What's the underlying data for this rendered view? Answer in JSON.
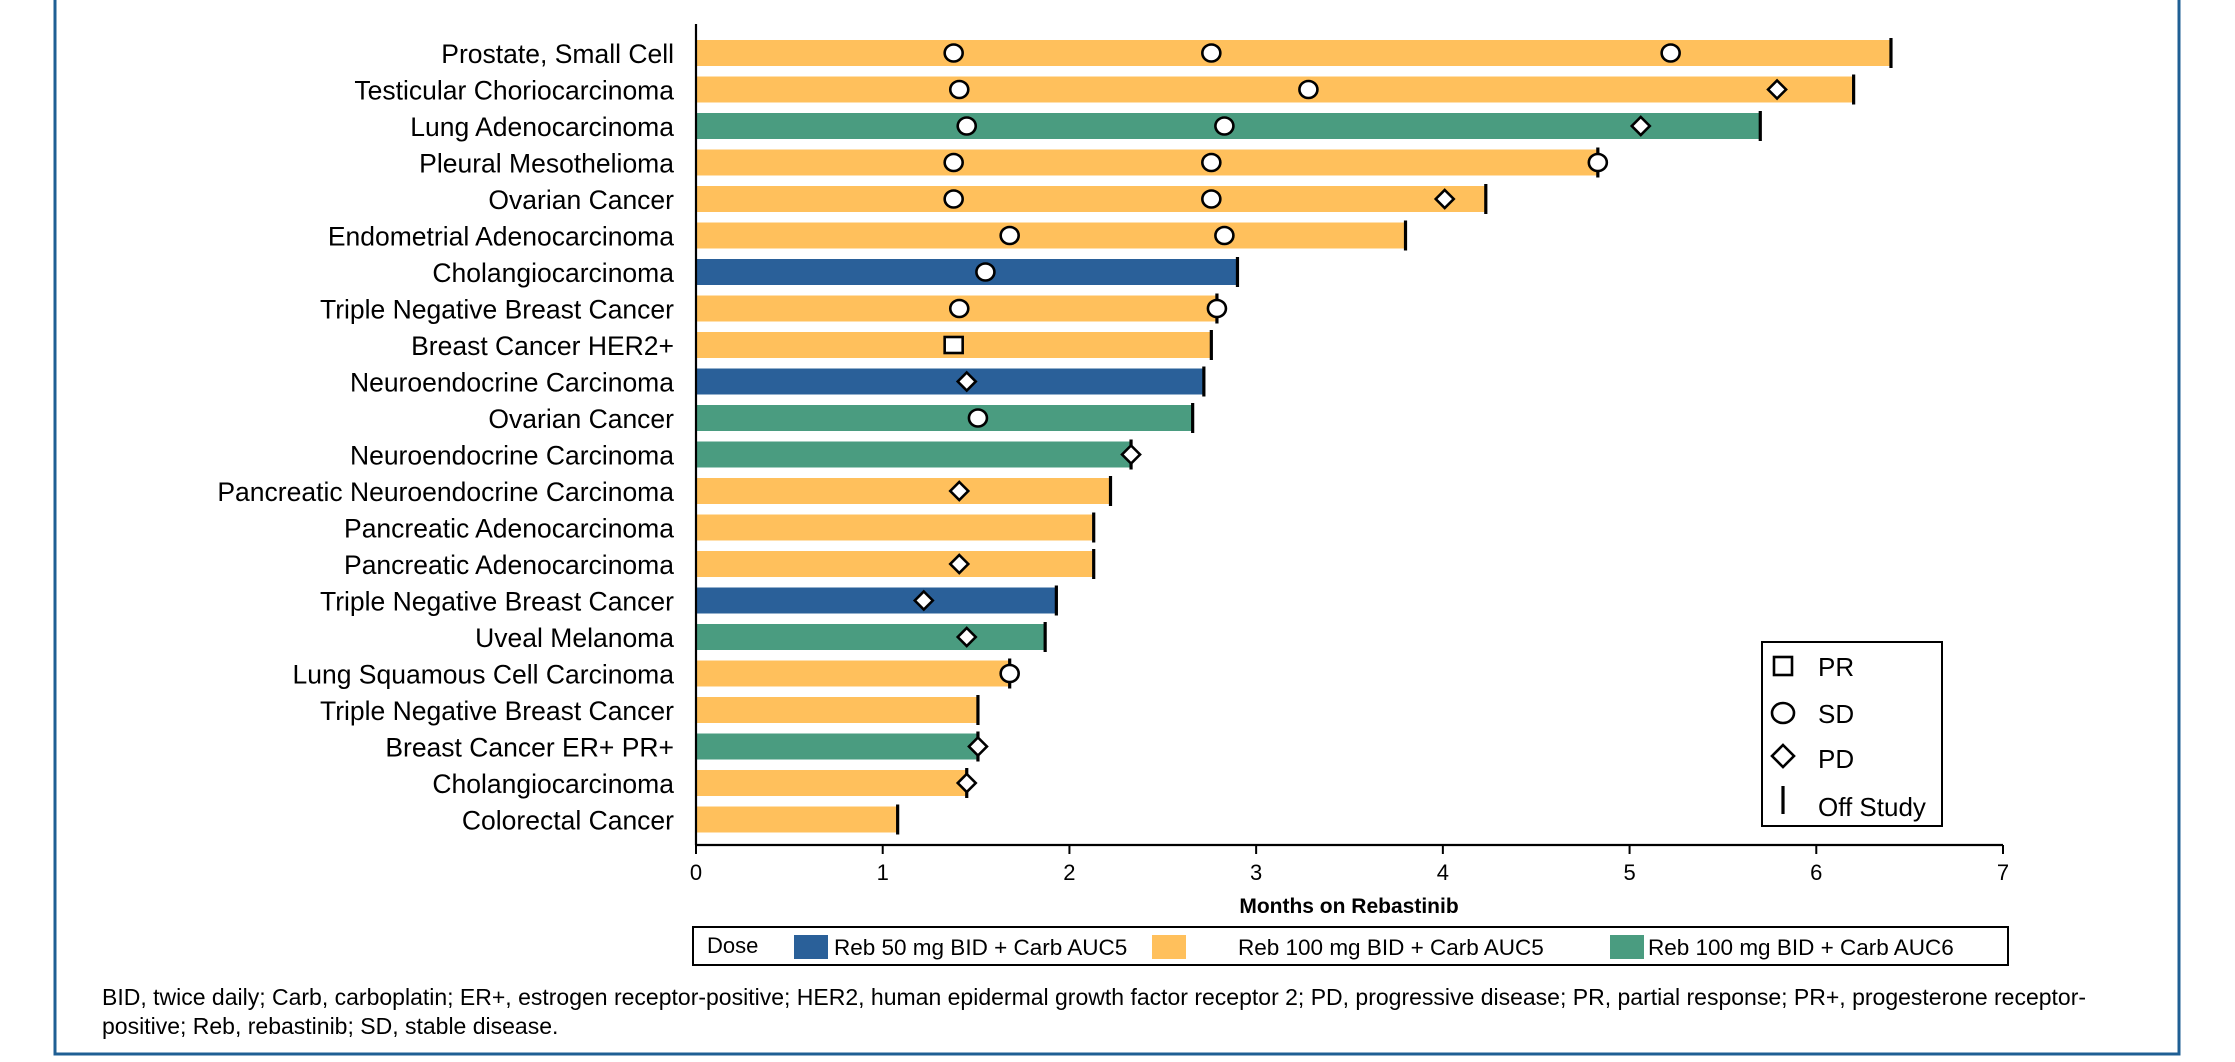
{
  "chart_data": {
    "type": "bar",
    "orientation": "horizontal",
    "title": "",
    "xlabel": "Months on Rebastinib",
    "ylabel": "",
    "xlim": [
      0,
      7
    ],
    "x_ticks": [
      "0",
      "1",
      "2",
      "3",
      "4",
      "5",
      "6",
      "7"
    ],
    "grid": false,
    "legend_position": "bottom-right",
    "dose_groups": [
      {
        "key": "reb50_auc5",
        "name": "Reb 50 mg BID + Carb AUC5",
        "color": "#2A6099"
      },
      {
        "key": "reb100_auc5",
        "name": "Reb 100 mg BID + Carb AUC5",
        "color": "#FFC05C"
      },
      {
        "key": "reb100_auc6",
        "name": "Reb 100 mg BID + Carb AUC6",
        "color": "#4A9C80"
      }
    ],
    "dose_legend_title": "Dose",
    "response_legend": [
      {
        "marker": "square",
        "label": "PR"
      },
      {
        "marker": "circle",
        "label": "SD"
      },
      {
        "marker": "diamond",
        "label": "PD"
      },
      {
        "marker": "bar",
        "label": "Off Study"
      }
    ],
    "rows": [
      {
        "label": "Prostate, Small Cell",
        "months": 6.4,
        "dose": "reb100_auc5",
        "off_study": true,
        "markers": [
          {
            "type": "circle",
            "x": 1.38
          },
          {
            "type": "circle",
            "x": 2.76
          },
          {
            "type": "circle",
            "x": 5.22
          }
        ]
      },
      {
        "label": "Testicular Choriocarcinoma",
        "months": 6.2,
        "dose": "reb100_auc5",
        "off_study": true,
        "markers": [
          {
            "type": "circle",
            "x": 1.41
          },
          {
            "type": "circle",
            "x": 3.28
          },
          {
            "type": "diamond",
            "x": 5.79
          }
        ]
      },
      {
        "label": "Lung Adenocarcinoma",
        "months": 5.7,
        "dose": "reb100_auc6",
        "off_study": true,
        "markers": [
          {
            "type": "circle",
            "x": 1.45
          },
          {
            "type": "circle",
            "x": 2.83
          },
          {
            "type": "diamond",
            "x": 5.06
          }
        ]
      },
      {
        "label": "Pleural Mesothelioma",
        "months": 4.83,
        "dose": "reb100_auc5",
        "off_study": true,
        "markers": [
          {
            "type": "circle",
            "x": 1.38
          },
          {
            "type": "circle",
            "x": 2.76
          },
          {
            "type": "circle",
            "x": 4.83
          }
        ]
      },
      {
        "label": "Ovarian Cancer",
        "months": 4.23,
        "dose": "reb100_auc5",
        "off_study": true,
        "markers": [
          {
            "type": "circle",
            "x": 1.38
          },
          {
            "type": "circle",
            "x": 2.76
          },
          {
            "type": "diamond",
            "x": 4.01
          }
        ]
      },
      {
        "label": "Endometrial Adenocarcinoma",
        "months": 3.8,
        "dose": "reb100_auc5",
        "off_study": true,
        "markers": [
          {
            "type": "circle",
            "x": 1.68
          },
          {
            "type": "circle",
            "x": 2.83
          }
        ]
      },
      {
        "label": "Cholangiocarcinoma",
        "months": 2.9,
        "dose": "reb50_auc5",
        "off_study": true,
        "markers": [
          {
            "type": "circle",
            "x": 1.55
          }
        ]
      },
      {
        "label": "Triple Negative Breast Cancer",
        "months": 2.79,
        "dose": "reb100_auc5",
        "off_study": true,
        "markers": [
          {
            "type": "circle",
            "x": 1.41
          },
          {
            "type": "circle",
            "x": 2.79
          }
        ]
      },
      {
        "label": "Breast Cancer HER2+",
        "months": 2.76,
        "dose": "reb100_auc5",
        "off_study": true,
        "markers": [
          {
            "type": "square",
            "x": 1.38
          }
        ]
      },
      {
        "label": "Neuroendocrine Carcinoma",
        "months": 2.72,
        "dose": "reb50_auc5",
        "off_study": true,
        "markers": [
          {
            "type": "diamond",
            "x": 1.45
          }
        ]
      },
      {
        "label": "Ovarian Cancer",
        "months": 2.66,
        "dose": "reb100_auc6",
        "off_study": true,
        "markers": [
          {
            "type": "circle",
            "x": 1.51
          }
        ]
      },
      {
        "label": "Neuroendocrine Carcinoma",
        "months": 2.33,
        "dose": "reb100_auc6",
        "off_study": true,
        "markers": [
          {
            "type": "diamond",
            "x": 2.33
          }
        ]
      },
      {
        "label": "Pancreatic Neuroendocrine Carcinoma",
        "months": 2.22,
        "dose": "reb100_auc5",
        "off_study": true,
        "markers": [
          {
            "type": "diamond",
            "x": 1.41
          }
        ]
      },
      {
        "label": "Pancreatic Adenocarcinoma",
        "months": 2.13,
        "dose": "reb100_auc5",
        "off_study": true,
        "markers": []
      },
      {
        "label": "Pancreatic Adenocarcinoma",
        "months": 2.13,
        "dose": "reb100_auc5",
        "off_study": true,
        "markers": [
          {
            "type": "diamond",
            "x": 1.41
          }
        ]
      },
      {
        "label": "Triple Negative Breast Cancer",
        "months": 1.93,
        "dose": "reb50_auc5",
        "off_study": true,
        "markers": [
          {
            "type": "diamond",
            "x": 1.22
          }
        ]
      },
      {
        "label": "Uveal Melanoma",
        "months": 1.87,
        "dose": "reb100_auc6",
        "off_study": true,
        "markers": [
          {
            "type": "diamond",
            "x": 1.45
          }
        ]
      },
      {
        "label": "Lung Squamous Cell Carcinoma",
        "months": 1.68,
        "dose": "reb100_auc5",
        "off_study": true,
        "markers": [
          {
            "type": "circle",
            "x": 1.68
          }
        ]
      },
      {
        "label": "Triple Negative Breast Cancer",
        "months": 1.51,
        "dose": "reb100_auc5",
        "off_study": true,
        "markers": []
      },
      {
        "label": "Breast Cancer ER+ PR+",
        "months": 1.51,
        "dose": "reb100_auc6",
        "off_study": true,
        "markers": [
          {
            "type": "diamond",
            "x": 1.51
          }
        ]
      },
      {
        "label": "Cholangiocarcinoma",
        "months": 1.45,
        "dose": "reb100_auc5",
        "off_study": true,
        "markers": [
          {
            "type": "diamond",
            "x": 1.45
          }
        ]
      },
      {
        "label": "Colorectal Cancer",
        "months": 1.08,
        "dose": "reb100_auc5",
        "off_study": true,
        "markers": []
      }
    ]
  },
  "footnote": "BID, twice daily; Carb, carboplatin; ER+, estrogen receptor-positive; HER2, human epidermal growth factor receptor 2; PD, progressive disease; PR, partial response; PR+, progesterone receptor-positive; Reb, rebastinib; SD, stable disease.",
  "colors": {
    "frame_border": "#1F5F94"
  }
}
